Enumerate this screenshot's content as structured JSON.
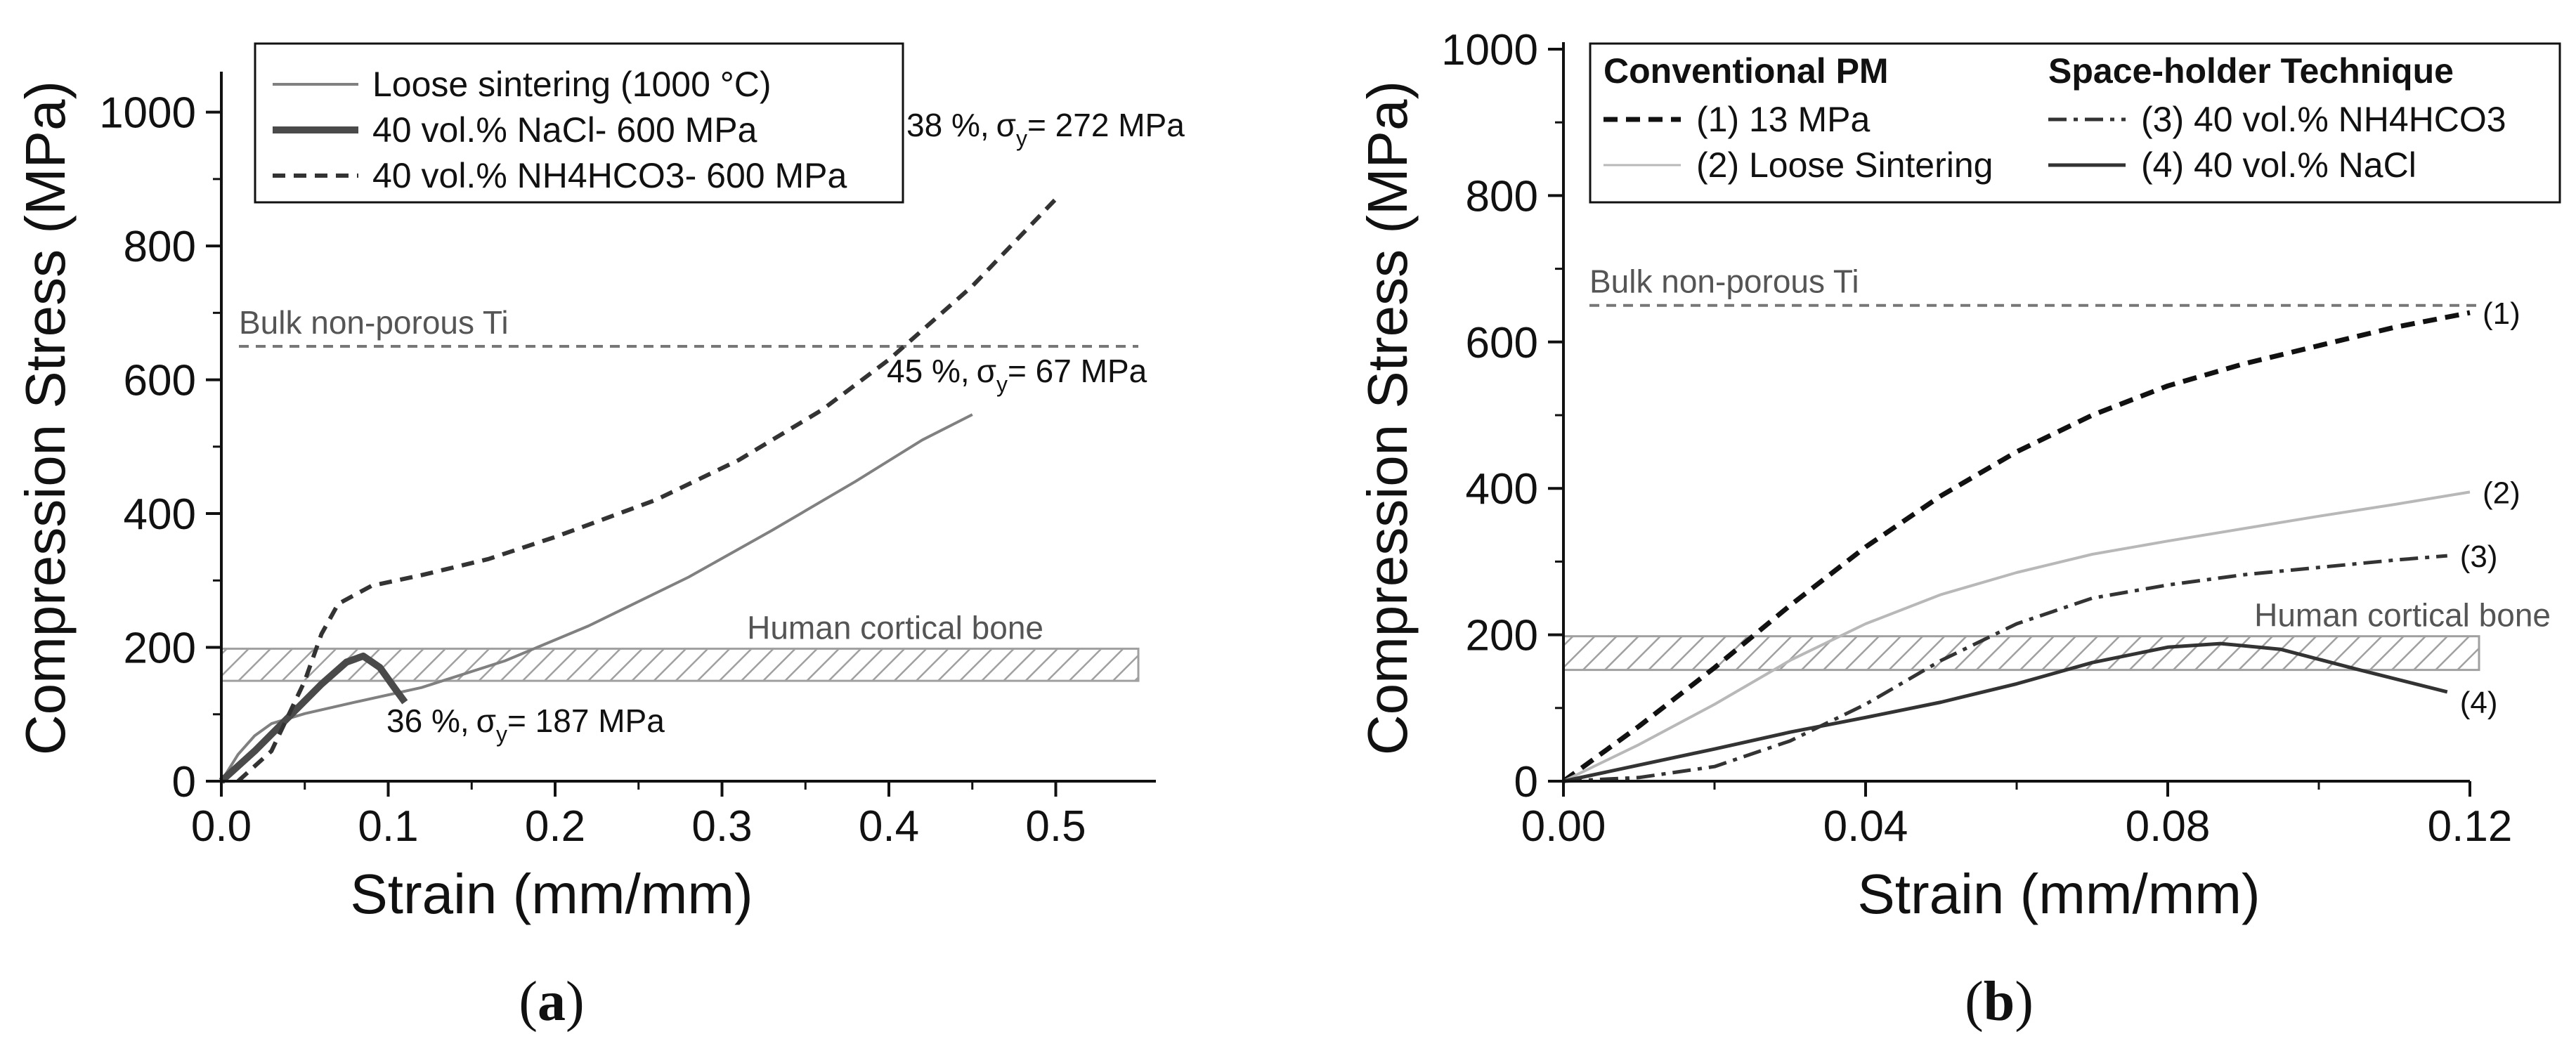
{
  "chart_data": [
    {
      "type": "line",
      "panel_label": "a",
      "xlabel": "Strain (mm/mm)",
      "ylabel": "Compression Stress (MPa)",
      "xlim": [
        0,
        0.56
      ],
      "ylim": [
        0,
        1050
      ],
      "xticks": [
        0.0,
        0.1,
        0.2,
        0.3,
        0.4,
        0.5
      ],
      "xtick_labels": [
        "0.0",
        "0.1",
        "0.2",
        "0.3",
        "0.4",
        "0.5"
      ],
      "yticks": [
        0,
        200,
        400,
        600,
        800,
        1000
      ],
      "ytick_labels": [
        "0",
        "200",
        "400",
        "600",
        "800",
        "1000"
      ],
      "legend_position": "top-left",
      "series": [
        {
          "name": "Loose sintering (1000 °C)",
          "style": "solid-thin",
          "color": "#808080",
          "x": [
            0.0,
            0.01,
            0.02,
            0.03,
            0.05,
            0.08,
            0.12,
            0.17,
            0.22,
            0.28,
            0.33,
            0.38,
            0.42,
            0.45
          ],
          "y": [
            0,
            40,
            68,
            86,
            101,
            118,
            140,
            180,
            232,
            305,
            375,
            448,
            510,
            548
          ]
        },
        {
          "name": "40 vol.% NaCl- 600 MPa",
          "style": "solid-thick",
          "color": "#4a4a4a",
          "x": [
            0.0,
            0.02,
            0.04,
            0.06,
            0.075,
            0.085,
            0.095,
            0.105,
            0.11
          ],
          "y": [
            0,
            45,
            95,
            145,
            178,
            187,
            170,
            135,
            118
          ]
        },
        {
          "name": "40 vol.% NH4HCO3- 600 MPa",
          "style": "dashed",
          "color": "#333333",
          "x": [
            0.01,
            0.03,
            0.05,
            0.06,
            0.07,
            0.09,
            0.12,
            0.16,
            0.2,
            0.26,
            0.31,
            0.36,
            0.4,
            0.45,
            0.5
          ],
          "y": [
            0,
            45,
            150,
            220,
            265,
            292,
            308,
            332,
            365,
            420,
            480,
            555,
            630,
            740,
            870
          ]
        }
      ],
      "reference_lines": [
        {
          "label": "Bulk non-porous Ti",
          "y": 650
        }
      ],
      "reference_bands": [
        {
          "label": "Human cortical bone",
          "y0": 150,
          "y1": 198
        }
      ],
      "annotations": [
        {
          "strain_pct": "38 %,",
          "sigma": "σ",
          "sub": "y",
          "value": "= 272 MPa"
        },
        {
          "strain_pct": "45 %,",
          "sigma": "σ",
          "sub": "y",
          "value": "= 67 MPa"
        },
        {
          "strain_pct": "36 %,",
          "sigma": "σ",
          "sub": "y",
          "value": "= 187 MPa"
        }
      ]
    },
    {
      "type": "line",
      "panel_label": "b",
      "xlabel": "Strain (mm/mm)",
      "ylabel": "Compression Stress (MPa)",
      "xlim": [
        0,
        0.12
      ],
      "ylim": [
        0,
        1000
      ],
      "xticks": [
        0.0,
        0.04,
        0.08,
        0.12
      ],
      "xtick_labels": [
        "0.00",
        "0.04",
        "0.08",
        "0.12"
      ],
      "yticks": [
        0,
        200,
        400,
        600,
        800,
        1000
      ],
      "ytick_labels": [
        "0",
        "200",
        "400",
        "600",
        "800",
        "1000"
      ],
      "legend_position": "top",
      "legend_groups": [
        "Conventional PM",
        "Space-holder Technique"
      ],
      "series": [
        {
          "name": "(1) 13 MPa",
          "id_label": "(1)",
          "style": "dashed-thick",
          "color": "#111111",
          "x": [
            0.0,
            0.01,
            0.02,
            0.03,
            0.04,
            0.05,
            0.06,
            0.07,
            0.08,
            0.09,
            0.1,
            0.11,
            0.12
          ],
          "y": [
            0,
            75,
            155,
            240,
            320,
            390,
            450,
            500,
            540,
            570,
            595,
            620,
            640
          ]
        },
        {
          "name": "(2) Loose Sintering",
          "id_label": "(2)",
          "style": "solid-thin",
          "color": "#b8b8b8",
          "x": [
            0.0,
            0.01,
            0.02,
            0.03,
            0.04,
            0.05,
            0.06,
            0.07,
            0.08,
            0.09,
            0.1,
            0.11,
            0.12
          ],
          "y": [
            0,
            50,
            105,
            165,
            215,
            255,
            285,
            310,
            328,
            345,
            362,
            378,
            395
          ]
        },
        {
          "name": "(3) 40 vol.% NH4HCO3",
          "id_label": "(3)",
          "style": "dash-dot",
          "color": "#333333",
          "x": [
            0.0,
            0.01,
            0.02,
            0.03,
            0.04,
            0.05,
            0.06,
            0.07,
            0.08,
            0.09,
            0.1,
            0.11,
            0.117
          ],
          "y": [
            0,
            5,
            20,
            55,
            105,
            165,
            215,
            250,
            268,
            282,
            292,
            302,
            308
          ]
        },
        {
          "name": "(4) 40 vol.% NaCl",
          "id_label": "(4)",
          "style": "solid",
          "color": "#333333",
          "x": [
            0.0,
            0.01,
            0.02,
            0.03,
            0.04,
            0.05,
            0.06,
            0.07,
            0.08,
            0.087,
            0.095,
            0.105,
            0.117
          ],
          "y": [
            0,
            22,
            44,
            67,
            87,
            108,
            133,
            162,
            183,
            188,
            180,
            153,
            122
          ]
        }
      ],
      "reference_lines": [
        {
          "label": "Bulk non-porous Ti",
          "y": 650
        }
      ],
      "reference_bands": [
        {
          "label": "Human cortical bone",
          "y0": 152,
          "y1": 198
        }
      ]
    }
  ]
}
